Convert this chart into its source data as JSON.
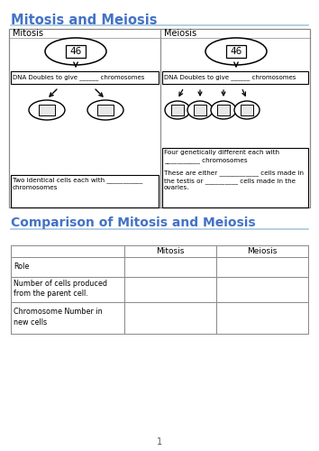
{
  "title1": "Mitosis and Meiosis",
  "title2": "Comparison of Mitosis and Meiosis",
  "title_color": "#4472C4",
  "bg_color": "#ffffff",
  "mitosis_label": "Mitosis",
  "meiosis_label": "Meiosis",
  "cell_number": "46",
  "dna_text": "DNA Doubles to give ______ chromosomes",
  "mitosis_bottom_text": "Two identical cells each with ___________\nchromosomes",
  "meiosis_bottom_text1": "Four genetically different each with\n___________ chromosomes",
  "meiosis_bottom_text2": "These are either ____________ cells made in\nthe testis or __________ cells made in the\novaries.",
  "table_rows": [
    "Role",
    "Number of cells produced\nfrom the parent cell.",
    "Chromosome Number in\nnew cells"
  ],
  "page_number": "1"
}
